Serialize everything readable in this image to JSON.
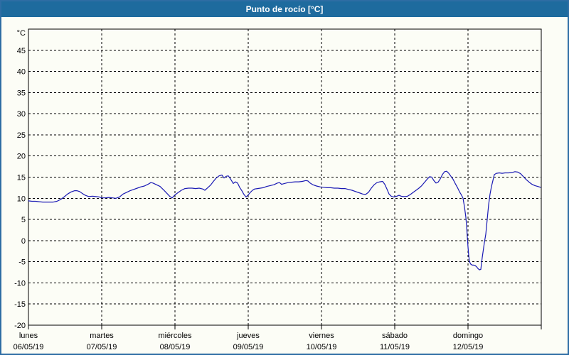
{
  "title": "Punto de rocío [°C]",
  "colors": {
    "titlebar_bg": "#1e6b9e",
    "title_text": "#ffffff",
    "window_border": "#2e6da4",
    "window_bg": "#fcfdf6",
    "grid_color": "#000000",
    "line_color": "#1a1ab4"
  },
  "chart_data": {
    "type": "line",
    "title": "Punto de rocío [°C]",
    "y_unit": "°C",
    "ylabel": "",
    "xlabel": "",
    "ylim": [
      -20,
      50
    ],
    "y_ticks": [
      45,
      40,
      35,
      30,
      25,
      20,
      15,
      10,
      5,
      0,
      -5,
      -10,
      -15,
      -20
    ],
    "grid": "dashed",
    "legend": "none",
    "x_days": [
      {
        "name": "lunes",
        "date": "06/05/19"
      },
      {
        "name": "martes",
        "date": "07/05/19"
      },
      {
        "name": "miércoles",
        "date": "08/05/19"
      },
      {
        "name": "jueves",
        "date": "09/05/19"
      },
      {
        "name": "viernes",
        "date": "10/05/19"
      },
      {
        "name": "sábado",
        "date": "11/05/19"
      },
      {
        "name": "domingo",
        "date": "12/05/19"
      }
    ],
    "series": [
      {
        "name": "Punto de rocío",
        "t": [
          0,
          0.049,
          0.097,
          0.146,
          0.194,
          0.243,
          0.291,
          0.34,
          0.388,
          0.437,
          0.485,
          0.534,
          0.583,
          0.631,
          0.66,
          0.699,
          0.738,
          0.777,
          0.825,
          0.874,
          0.922,
          0.971,
          1,
          1.049,
          1.097,
          1.146,
          1.194,
          1.243,
          1.291,
          1.34,
          1.388,
          1.437,
          1.485,
          1.534,
          1.583,
          1.631,
          1.67,
          1.699,
          1.748,
          1.796,
          1.845,
          1.893,
          1.932,
          1.961,
          2,
          2.039,
          2.087,
          2.136,
          2.184,
          2.233,
          2.282,
          2.33,
          2.379,
          2.408,
          2.447,
          2.485,
          2.524,
          2.563,
          2.602,
          2.641,
          2.67,
          2.699,
          2.728,
          2.757,
          2.796,
          2.825,
          2.854,
          2.883,
          2.913,
          2.942,
          2.971,
          3,
          3.029,
          3.058,
          3.087,
          3.126,
          3.165,
          3.204,
          3.252,
          3.301,
          3.35,
          3.398,
          3.427,
          3.456,
          3.495,
          3.544,
          3.592,
          3.641,
          3.689,
          3.738,
          3.786,
          3.816,
          3.845,
          3.883,
          3.932,
          3.981,
          4.029,
          4.078,
          4.126,
          4.175,
          4.223,
          4.272,
          4.32,
          4.369,
          4.417,
          4.466,
          4.515,
          4.563,
          4.602,
          4.641,
          4.68,
          4.718,
          4.757,
          4.796,
          4.835,
          4.864,
          4.893,
          4.922,
          4.951,
          4.981,
          5,
          5.029,
          5.058,
          5.087,
          5.117,
          5.146,
          5.175,
          5.214,
          5.252,
          5.291,
          5.33,
          5.369,
          5.408,
          5.447,
          5.476,
          5.505,
          5.534,
          5.563,
          5.592,
          5.621,
          5.65,
          5.68,
          5.709,
          5.738,
          5.767,
          5.796,
          5.825,
          5.854,
          5.883,
          5.913,
          5.932,
          5.951,
          5.971,
          5.981,
          5.99,
          6,
          6.01,
          6.019,
          6.039,
          6.058,
          6.078,
          6.097,
          6.117,
          6.136,
          6.155,
          6.175,
          6.194,
          6.223,
          6.243,
          6.262,
          6.282,
          6.301,
          6.32,
          6.34,
          6.359,
          6.388,
          6.427,
          6.466,
          6.505,
          6.553,
          6.602,
          6.641,
          6.68,
          6.718,
          6.757,
          6.796,
          6.835,
          6.874,
          6.913,
          6.951,
          6.99
        ],
        "v": [
          9.4,
          9.3,
          9.3,
          9.2,
          9.1,
          9.1,
          9.1,
          9.1,
          9.3,
          9.7,
          10.3,
          11.0,
          11.5,
          11.8,
          11.8,
          11.6,
          11.1,
          10.7,
          10.4,
          10.5,
          10.4,
          10.3,
          10.1,
          10.1,
          10.2,
          10.1,
          10.0,
          10.3,
          11.0,
          11.4,
          11.8,
          12.1,
          12.4,
          12.7,
          12.9,
          13.3,
          13.7,
          13.6,
          13.2,
          12.8,
          12.0,
          11.1,
          10.4,
          10.1,
          10.8,
          11.3,
          11.9,
          12.3,
          12.4,
          12.4,
          12.3,
          12.4,
          12.2,
          11.9,
          12.5,
          13.1,
          14.0,
          14.8,
          15.3,
          15.5,
          14.8,
          15.2,
          15.3,
          14.6,
          13.5,
          13.9,
          13.6,
          12.6,
          11.8,
          10.9,
          10.3,
          10.8,
          11.4,
          11.9,
          12.2,
          12.3,
          12.4,
          12.5,
          12.8,
          13.0,
          13.2,
          13.6,
          13.7,
          13.3,
          13.5,
          13.7,
          13.8,
          13.9,
          13.9,
          14.0,
          14.2,
          14.1,
          13.6,
          13.2,
          12.9,
          12.7,
          12.6,
          12.5,
          12.5,
          12.4,
          12.4,
          12.3,
          12.3,
          12.1,
          11.9,
          11.6,
          11.3,
          11.0,
          10.9,
          11.4,
          12.4,
          13.2,
          13.7,
          13.9,
          14.0,
          13.3,
          12.2,
          11.0,
          10.5,
          10.3,
          10.4,
          10.5,
          10.7,
          10.5,
          10.4,
          10.4,
          10.5,
          10.9,
          11.4,
          11.9,
          12.4,
          13.0,
          13.8,
          14.6,
          15.1,
          15.0,
          14.2,
          13.6,
          13.8,
          14.6,
          15.6,
          16.3,
          16.4,
          15.9,
          15.2,
          14.5,
          13.5,
          12.6,
          11.6,
          10.7,
          10.0,
          8.0,
          5.5,
          3.5,
          1.0,
          -1.5,
          -3.5,
          -5.0,
          -5.6,
          -5.8,
          -5.8,
          -5.9,
          -6.2,
          -6.6,
          -6.9,
          -6.8,
          -4.0,
          -0.5,
          1.5,
          5.0,
          8.5,
          11.0,
          12.8,
          14.2,
          15.6,
          15.9,
          16.0,
          15.9,
          16.0,
          16.0,
          16.1,
          16.3,
          16.2,
          15.8,
          15.1,
          14.4,
          13.8,
          13.3,
          13.0,
          12.8,
          12.6
        ]
      }
    ]
  }
}
